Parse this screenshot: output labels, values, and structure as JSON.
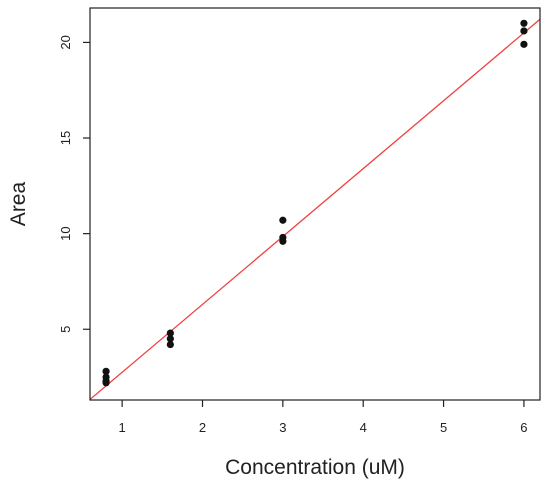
{
  "chart_data": {
    "type": "scatter",
    "xlabel": "Concentration (uM)",
    "ylabel": "Area",
    "xlim": [
      0.6,
      6.2
    ],
    "ylim": [
      1.3,
      21.8
    ],
    "x_ticks": [
      1,
      2,
      3,
      4,
      5,
      6
    ],
    "y_ticks": [
      5,
      10,
      15,
      20
    ],
    "grid": false,
    "series": [
      {
        "points": [
          {
            "x": 0.8,
            "y": 2.8
          },
          {
            "x": 0.8,
            "y": 2.5
          },
          {
            "x": 0.8,
            "y": 2.3
          },
          {
            "x": 0.8,
            "y": 2.2
          },
          {
            "x": 1.6,
            "y": 4.8
          },
          {
            "x": 1.6,
            "y": 4.5
          },
          {
            "x": 1.6,
            "y": 4.2
          },
          {
            "x": 3.0,
            "y": 10.7
          },
          {
            "x": 3.0,
            "y": 9.8
          },
          {
            "x": 3.0,
            "y": 9.6
          },
          {
            "x": 6.0,
            "y": 21.0
          },
          {
            "x": 6.0,
            "y": 20.6
          },
          {
            "x": 6.0,
            "y": 19.9
          }
        ],
        "color": "#111111"
      }
    ],
    "fit_line": {
      "slope": 3.55,
      "intercept": -0.8,
      "color": "#f04040"
    }
  }
}
